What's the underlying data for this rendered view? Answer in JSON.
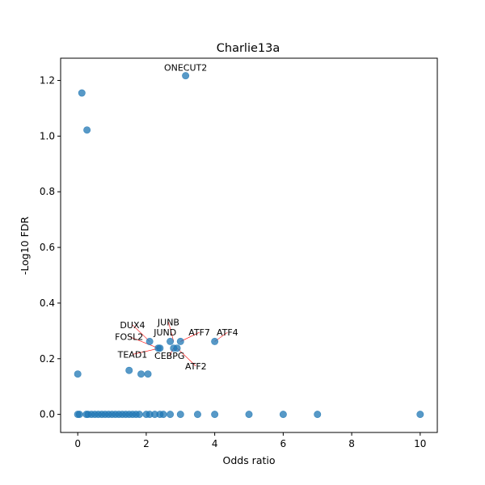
{
  "chart_data": {
    "type": "scatter",
    "title": "Charlie13a",
    "xlabel": "Odds ratio",
    "ylabel": "-Log10 FDR",
    "xlim": [
      -0.5,
      10.5
    ],
    "ylim": [
      -0.065,
      1.28
    ],
    "xticks": [
      0,
      2,
      4,
      6,
      8,
      10
    ],
    "yticks": [
      0.0,
      0.2,
      0.4,
      0.6,
      0.8,
      1.0,
      1.2
    ],
    "xtick_labels": [
      "0",
      "2",
      "4",
      "6",
      "8",
      "10"
    ],
    "ytick_labels": [
      "0.0",
      "0.2",
      "0.4",
      "0.6",
      "0.8",
      "1.0",
      "1.2"
    ],
    "grid": false,
    "marker_color": "#1f77b4",
    "annotation_line_color": "#ff0000",
    "points": [
      {
        "x": 3.15,
        "y": 1.217
      },
      {
        "x": 0.12,
        "y": 1.155
      },
      {
        "x": 0.27,
        "y": 1.022
      },
      {
        "x": 2.1,
        "y": 0.262
      },
      {
        "x": 2.7,
        "y": 0.262
      },
      {
        "x": 3.0,
        "y": 0.262
      },
      {
        "x": 4.0,
        "y": 0.262
      },
      {
        "x": 2.35,
        "y": 0.238
      },
      {
        "x": 2.4,
        "y": 0.238
      },
      {
        "x": 2.8,
        "y": 0.238
      },
      {
        "x": 2.9,
        "y": 0.238
      },
      {
        "x": 1.5,
        "y": 0.158
      },
      {
        "x": 0.0,
        "y": 0.145
      },
      {
        "x": 1.85,
        "y": 0.145
      },
      {
        "x": 2.05,
        "y": 0.145
      },
      {
        "x": 0.0,
        "y": 0.0
      },
      {
        "x": 0.05,
        "y": 0.0
      },
      {
        "x": 0.25,
        "y": 0.0
      },
      {
        "x": 0.3,
        "y": 0.0
      },
      {
        "x": 0.4,
        "y": 0.0
      },
      {
        "x": 0.5,
        "y": 0.0
      },
      {
        "x": 0.6,
        "y": 0.0
      },
      {
        "x": 0.7,
        "y": 0.0
      },
      {
        "x": 0.8,
        "y": 0.0
      },
      {
        "x": 0.9,
        "y": 0.0
      },
      {
        "x": 1.0,
        "y": 0.0
      },
      {
        "x": 1.1,
        "y": 0.0
      },
      {
        "x": 1.2,
        "y": 0.0
      },
      {
        "x": 1.3,
        "y": 0.0
      },
      {
        "x": 1.4,
        "y": 0.0
      },
      {
        "x": 1.5,
        "y": 0.0
      },
      {
        "x": 1.6,
        "y": 0.0
      },
      {
        "x": 1.7,
        "y": 0.0
      },
      {
        "x": 1.8,
        "y": 0.0
      },
      {
        "x": 2.0,
        "y": 0.0
      },
      {
        "x": 2.1,
        "y": 0.0
      },
      {
        "x": 2.25,
        "y": 0.0
      },
      {
        "x": 2.4,
        "y": 0.0
      },
      {
        "x": 2.5,
        "y": 0.0
      },
      {
        "x": 2.7,
        "y": 0.0
      },
      {
        "x": 3.0,
        "y": 0.0
      },
      {
        "x": 3.5,
        "y": 0.0
      },
      {
        "x": 4.0,
        "y": 0.0
      },
      {
        "x": 5.0,
        "y": 0.0
      },
      {
        "x": 6.0,
        "y": 0.0
      },
      {
        "x": 7.0,
        "y": 0.0
      },
      {
        "x": 10.0,
        "y": 0.0
      }
    ],
    "annotations": [
      {
        "text": "ONECUT2",
        "x": 3.15,
        "y": 1.217,
        "tx": 3.15,
        "ty": 1.235,
        "align": "middle"
      },
      {
        "text": "DUX4",
        "x": 2.1,
        "y": 0.262,
        "tx": 1.6,
        "ty": 0.31,
        "align": "middle"
      },
      {
        "text": "JUNB",
        "x": 2.8,
        "y": 0.262,
        "tx": 2.65,
        "ty": 0.32,
        "align": "middle"
      },
      {
        "text": "JUND",
        "x": 2.7,
        "y": 0.262,
        "tx": 2.55,
        "ty": 0.283,
        "align": "middle"
      },
      {
        "text": "ATF7",
        "x": 3.0,
        "y": 0.262,
        "tx": 3.55,
        "ty": 0.283,
        "align": "middle"
      },
      {
        "text": "ATF4",
        "x": 4.0,
        "y": 0.262,
        "tx": 4.37,
        "ty": 0.283,
        "align": "middle"
      },
      {
        "text": "FOSL2",
        "x": 2.35,
        "y": 0.238,
        "tx": 1.5,
        "ty": 0.268,
        "align": "middle"
      },
      {
        "text": "TEAD1",
        "x": 2.4,
        "y": 0.238,
        "tx": 1.6,
        "ty": 0.204,
        "align": "middle"
      },
      {
        "text": "CEBPG",
        "x": 2.8,
        "y": 0.238,
        "tx": 2.68,
        "ty": 0.2,
        "align": "middle"
      },
      {
        "text": "ATF2",
        "x": 2.9,
        "y": 0.238,
        "tx": 3.45,
        "ty": 0.162,
        "align": "middle"
      }
    ]
  }
}
